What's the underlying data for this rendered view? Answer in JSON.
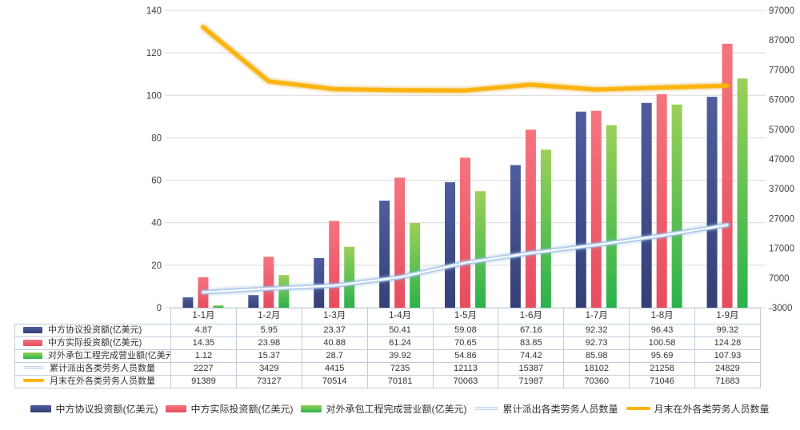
{
  "chart_data": {
    "type": "bar+line",
    "categories": [
      "1-1月",
      "1-2月",
      "1-3月",
      "1-4月",
      "1-5月",
      "1-6月",
      "1-7月",
      "1-8月",
      "1-9月"
    ],
    "bar_series": [
      {
        "name": "中方协议投资额(亿美元)",
        "axis": "left",
        "values": [
          4.87,
          5.95,
          23.37,
          50.41,
          59.08,
          67.16,
          92.32,
          96.43,
          99.32
        ],
        "color_top": "#4f5d9e",
        "color_bottom": "#343f76"
      },
      {
        "name": "中方实际投资额(亿美元)",
        "axis": "left",
        "values": [
          14.35,
          23.98,
          40.88,
          61.24,
          70.65,
          83.85,
          92.73,
          100.58,
          124.28
        ],
        "color_top": "#f5747f",
        "color_bottom": "#e84c5e"
      },
      {
        "name": "对外承包工程完成营业额(亿美元)",
        "axis": "left",
        "values": [
          1.12,
          15.37,
          28.7,
          39.92,
          54.86,
          74.42,
          85.98,
          95.69,
          107.93
        ],
        "color_top": "#9bd059",
        "color_bottom": "#2bb24c"
      }
    ],
    "line_series": [
      {
        "name": "累计派出各类劳务人员数量",
        "axis": "right",
        "values": [
          2227,
          3429,
          4415,
          7235,
          12113,
          15387,
          18102,
          21258,
          24829
        ],
        "color": "#aecbec",
        "core": "#ffffff",
        "halo": "#8fb3da",
        "swatch": "#e4ebf4"
      },
      {
        "name": "月末在外各类劳务人员数量",
        "axis": "right",
        "values": [
          91389,
          73127,
          70514,
          70181,
          70063,
          71987,
          70360,
          71046,
          71683
        ],
        "color": "#fbb40f",
        "halo": "#e09c17",
        "swatch": "#fbb40f"
      }
    ],
    "left_axis": {
      "min": 0,
      "max": 140,
      "step": 20
    },
    "right_axis": {
      "min": -3000,
      "max": 97000,
      "step": 10000
    },
    "grid": {
      "on": true,
      "color": "#d9d9d9"
    },
    "axis_text_color": "#404040",
    "legend_position": "bottom",
    "title": "",
    "xlabel": "",
    "ylabel_left": "",
    "ylabel_right": ""
  }
}
